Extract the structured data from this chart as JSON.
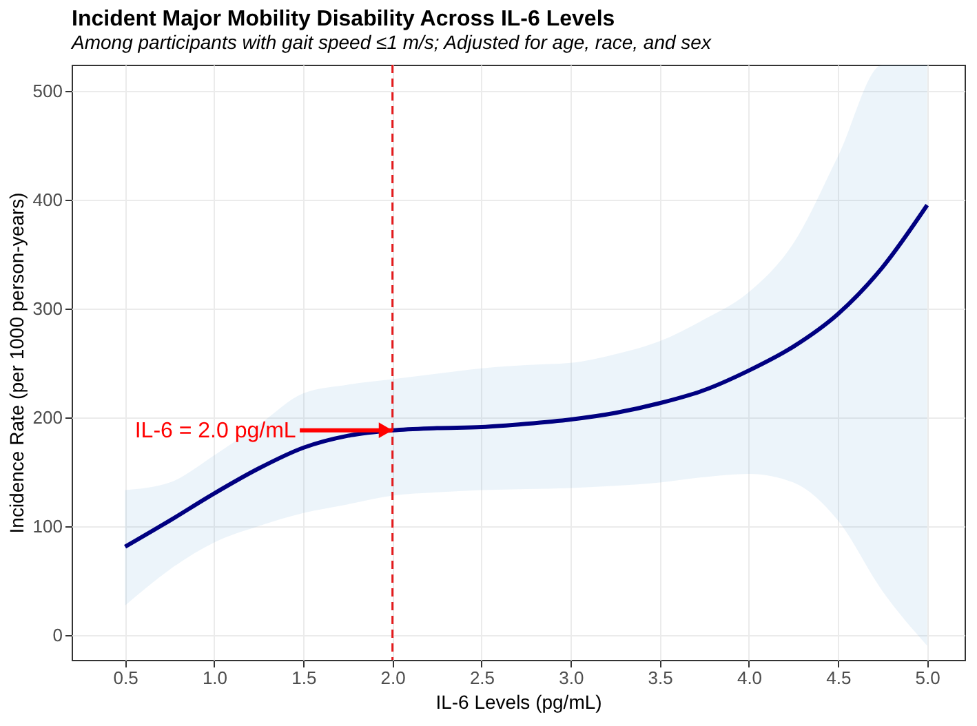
{
  "chart_data": {
    "type": "line",
    "title": "Incident Major Mobility Disability Across IL-6 Levels",
    "subtitle": "Among participants with gait speed ≤1 m/s; Adjusted for age, race, and sex",
    "xlabel": "IL-6 Levels (pg/mL)",
    "ylabel": "Incidence Rate (per 1000 person-years)",
    "x": [
      0.5,
      0.75,
      1.0,
      1.25,
      1.5,
      1.75,
      2.0,
      2.25,
      2.5,
      2.75,
      3.0,
      3.25,
      3.5,
      3.75,
      4.0,
      4.25,
      4.5,
      4.75,
      5.0
    ],
    "series": [
      {
        "color": "#000080",
        "values": [
          81,
          105,
          130,
          153,
          172,
          183,
          188,
          190,
          191,
          194,
          198,
          204,
          213,
          225,
          243,
          265,
          295,
          338,
          395
        ],
        "lower": [
          27,
          60,
          85,
          100,
          112,
          120,
          128,
          131,
          133,
          134,
          135,
          137,
          140,
          145,
          148,
          140,
          105,
          40,
          -10
        ],
        "upper": [
          133,
          140,
          165,
          193,
          222,
          230,
          235,
          240,
          245,
          248,
          250,
          258,
          270,
          290,
          315,
          360,
          440,
          524,
          524
        ]
      }
    ],
    "xlim": [
      0.2,
      5.21
    ],
    "ylim": [
      -23,
      524
    ],
    "xticks": [
      {
        "value": 0.5,
        "label": "0.5"
      },
      {
        "value": 1.0,
        "label": "1.0"
      },
      {
        "value": 1.5,
        "label": "1.5"
      },
      {
        "value": 2.0,
        "label": "2.0"
      },
      {
        "value": 2.5,
        "label": "2.5"
      },
      {
        "value": 3.0,
        "label": "3.0"
      },
      {
        "value": 3.5,
        "label": "3.5"
      },
      {
        "value": 4.0,
        "label": "4.0"
      },
      {
        "value": 4.5,
        "label": "4.5"
      },
      {
        "value": 5.0,
        "label": "5.0"
      }
    ],
    "yticks": [
      0,
      100,
      200,
      300,
      400,
      500
    ],
    "ref_lines": [
      {
        "axis": "x",
        "value": 2.0,
        "color": "#e41a1c",
        "line_style": "dashed"
      }
    ],
    "annotations": [
      {
        "text": "IL-6 = 2.0 pg/mL",
        "x": 2.0,
        "y": 188
      }
    ],
    "grid": true,
    "marker": "none",
    "line_style": "solid"
  }
}
